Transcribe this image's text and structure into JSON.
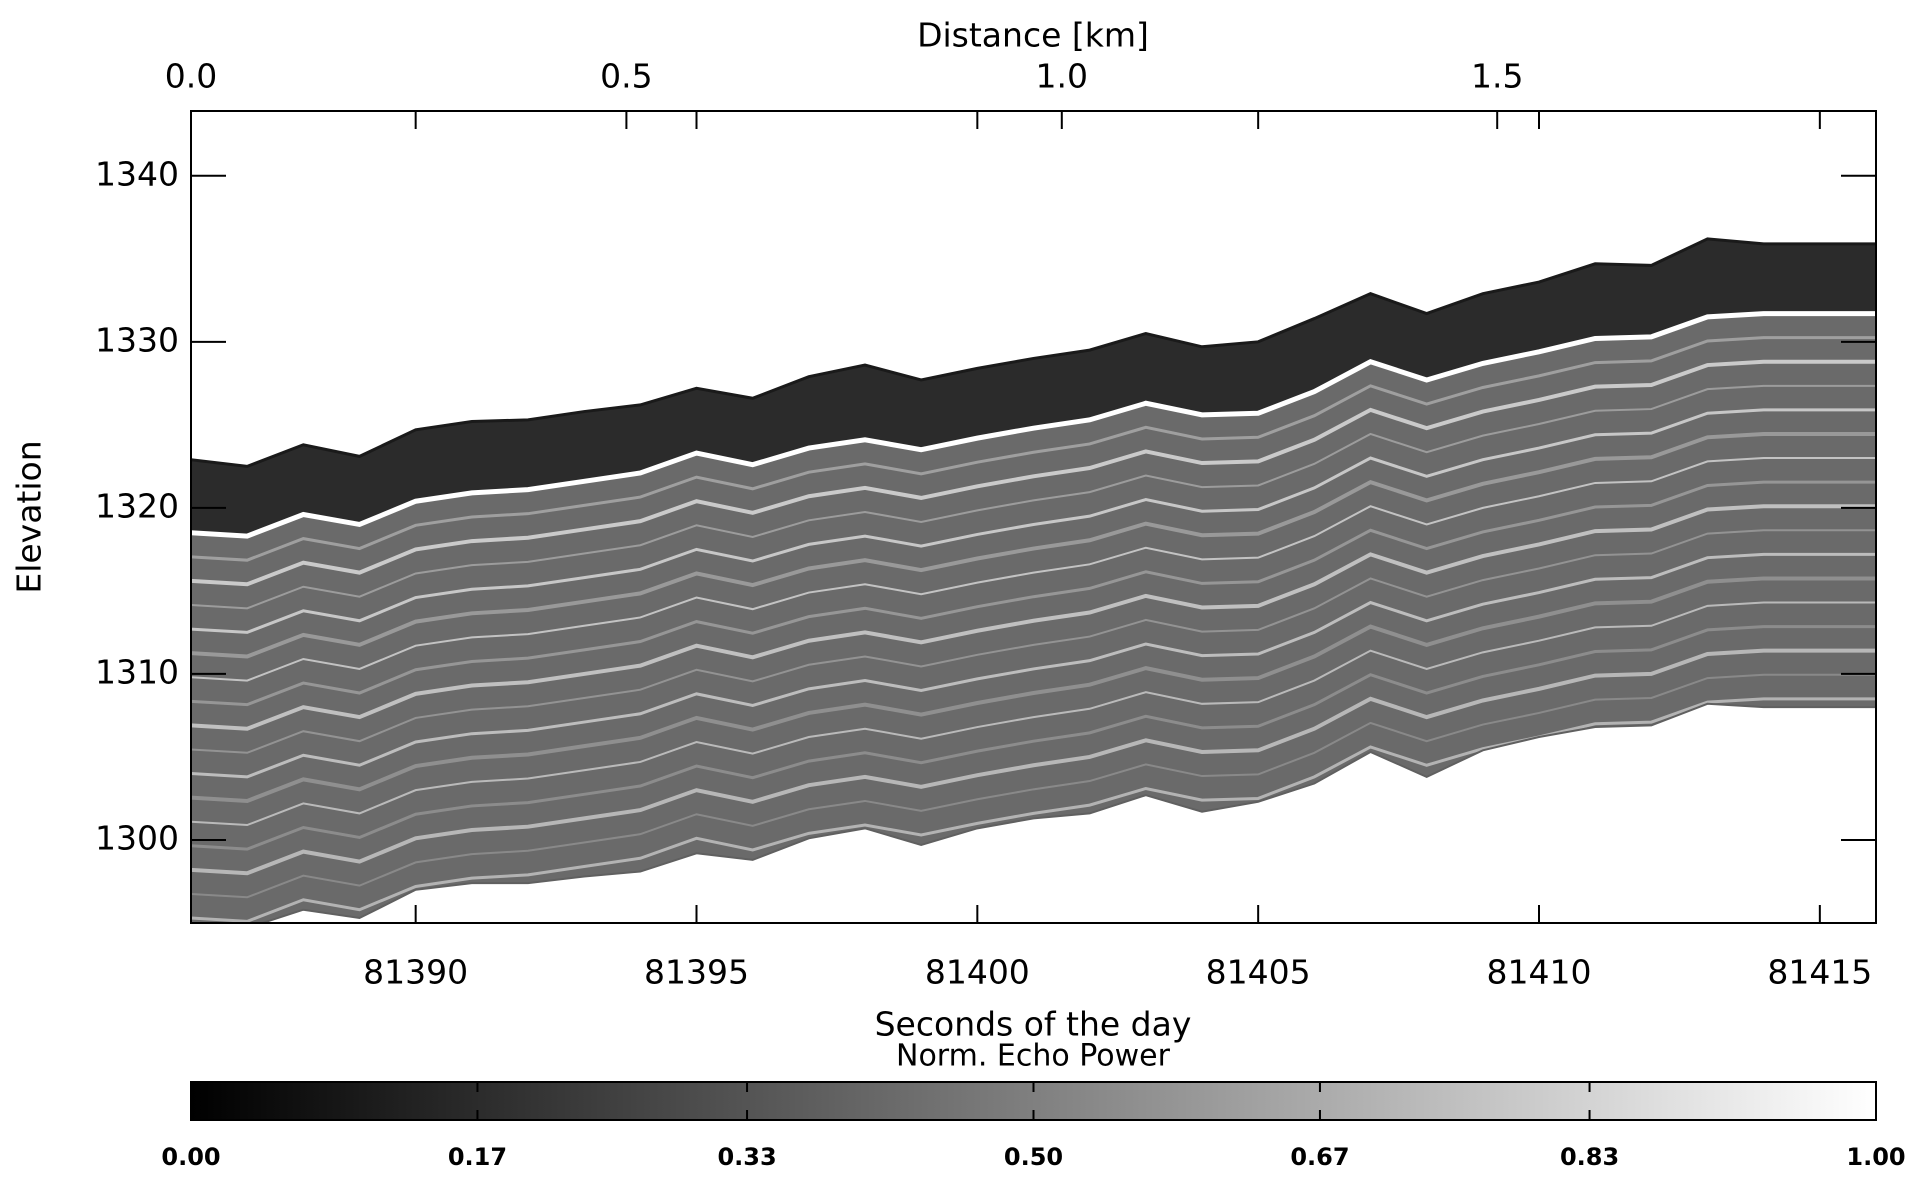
{
  "chart_data": {
    "type": "echogram",
    "x_label": "Seconds of the day",
    "x2_label": "Distance [km]",
    "y_label": "Elevation",
    "x": [
      81386,
      81387,
      81388,
      81389,
      81390,
      81391,
      81392,
      81393,
      81394,
      81395,
      81396,
      81397,
      81398,
      81399,
      81400,
      81401,
      81402,
      81403,
      81404,
      81405,
      81406,
      81407,
      81408,
      81409,
      81410,
      81411,
      81412,
      81413,
      81414,
      81415,
      81416
    ],
    "series": [
      {
        "color": "#1a1a1a",
        "values": [
          1322.9,
          1322.5,
          1323.8,
          1323.1,
          1324.7,
          1325.2,
          1325.3,
          1325.8,
          1326.2,
          1327.2,
          1326.6,
          1327.9,
          1328.6,
          1327.7,
          1328.4,
          1329.0,
          1329.5,
          1330.5,
          1329.7,
          1330.0,
          1331.4,
          1332.9,
          1331.7,
          1332.9,
          1333.6,
          1334.7,
          1334.6,
          1336.2,
          1335.9,
          1335.9,
          1335.9
        ]
      },
      {
        "color": "#ffffff",
        "values": [
          1318.5,
          1318.3,
          1319.6,
          1319.0,
          1320.4,
          1320.9,
          1321.1,
          1321.6,
          1322.1,
          1323.3,
          1322.6,
          1323.6,
          1324.1,
          1323.5,
          1324.2,
          1324.8,
          1325.3,
          1326.3,
          1325.6,
          1325.7,
          1327.0,
          1328.8,
          1327.7,
          1328.7,
          1329.4,
          1330.2,
          1330.3,
          1331.5,
          1331.7,
          1331.7,
          1331.7
        ]
      },
      {
        "color": "#606060",
        "values": [
          1294.9,
          1294.7,
          1295.8,
          1295.3,
          1297.0,
          1297.4,
          1297.4,
          1297.8,
          1298.1,
          1299.2,
          1298.8,
          1300.1,
          1300.7,
          1299.7,
          1300.7,
          1301.3,
          1301.6,
          1302.7,
          1301.7,
          1302.3,
          1303.4,
          1305.3,
          1303.8,
          1305.4,
          1306.2,
          1306.8,
          1306.9,
          1308.2,
          1308.0,
          1308.0,
          1308.0
        ]
      }
    ],
    "xlim": [
      81386,
      81416
    ],
    "xticks": [
      81390,
      81395,
      81400,
      81405,
      81410,
      81415
    ],
    "x2lim": [
      0,
      1.935
    ],
    "x2ticks": [
      {
        "value": 0,
        "label": "0.0"
      },
      0.5,
      {
        "value": 1,
        "label": "1.0"
      },
      1.5
    ],
    "ylim": [
      1295,
      1343.9
    ],
    "yticks": [
      1300,
      1310,
      1320,
      1330,
      1340
    ],
    "colorbar": {
      "label": "Norm. Echo Power",
      "lim": [
        0,
        1
      ],
      "colors": [
        "#000000",
        "#ffffff"
      ],
      "ticks": [
        {
          "value": 0,
          "label": "0.00"
        },
        0.17,
        0.33,
        {
          "value": 0.5,
          "label": "0.50"
        },
        0.67,
        0.83,
        {
          "value": 1,
          "label": "1.00"
        }
      ]
    }
  }
}
